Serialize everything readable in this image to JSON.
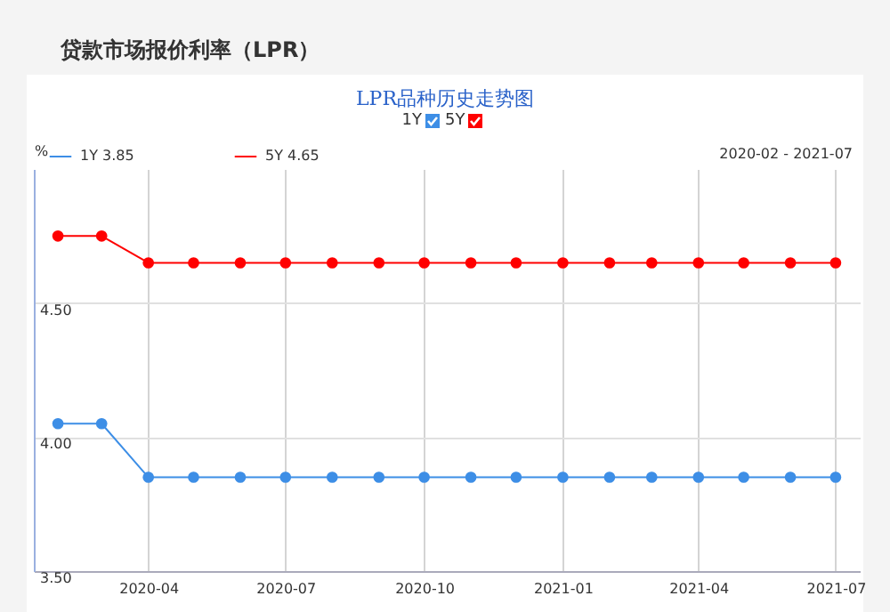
{
  "chart_data": {
    "type": "line",
    "title": "贷款市场报价利率（LPR）",
    "subtitle": "LPR品种历史走势图",
    "ylabel": "%",
    "annotations": [
      "2020-02 - 2021-07",
      "3.85",
      "4.65"
    ],
    "x": [
      "2020-02",
      "2020-03",
      "2020-04",
      "2020-05",
      "2020-06",
      "2020-07",
      "2020-08",
      "2020-09",
      "2020-10",
      "2020-11",
      "2020-12",
      "2021-01",
      "2021-02",
      "2021-03",
      "2021-04",
      "2021-05",
      "2021-06",
      "2021-07"
    ],
    "series": [
      {
        "name": "1Y",
        "color": "#3d8ee6",
        "values": [
          4.05,
          4.05,
          3.85,
          3.85,
          3.85,
          3.85,
          3.85,
          3.85,
          3.85,
          3.85,
          3.85,
          3.85,
          3.85,
          3.85,
          3.85,
          3.85,
          3.85,
          3.85
        ]
      },
      {
        "name": "5Y",
        "color": "#ff0000",
        "values": [
          4.75,
          4.75,
          4.65,
          4.65,
          4.65,
          4.65,
          4.65,
          4.65,
          4.65,
          4.65,
          4.65,
          4.65,
          4.65,
          4.65,
          4.65,
          4.65,
          4.65,
          4.65
        ]
      }
    ],
    "xlim": [
      "2020-01-16",
      "2021-07-17"
    ],
    "xticks": [
      "2020-04",
      "2020-07",
      "2020-10",
      "2021-01",
      "2021-04",
      "2021-07"
    ],
    "ylim": [
      3.5,
      5.0
    ],
    "yticks": [
      {
        "value": 3.5,
        "label": "3.50"
      },
      {
        "value": 4.0,
        "label": "4.00"
      },
      {
        "value": 4.5,
        "label": "4.50"
      }
    ],
    "grid": true,
    "legend": "top left",
    "marker": "circle",
    "line_style": "solid"
  }
}
